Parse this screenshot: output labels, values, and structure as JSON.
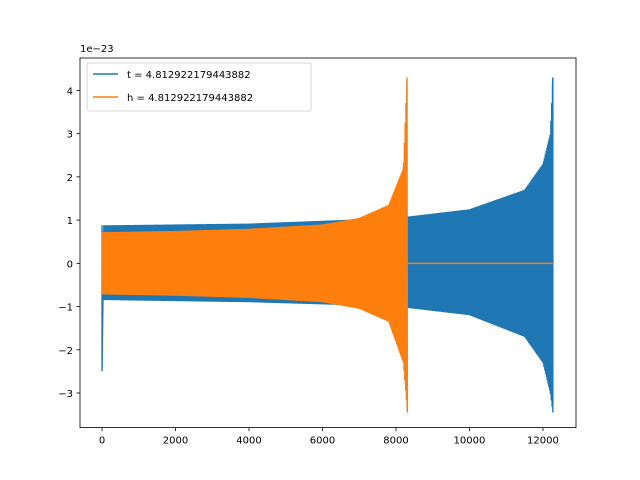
{
  "chart_data": {
    "type": "line",
    "title": "",
    "xlabel": "",
    "ylabel": "",
    "y_offset_label": "1e−23",
    "xlim": [
      -600,
      12900
    ],
    "ylim": [
      -3.8,
      4.75
    ],
    "x_ticks": [
      0,
      2000,
      4000,
      6000,
      8000,
      10000,
      12000
    ],
    "x_tick_labels": [
      "0",
      "2000",
      "4000",
      "6000",
      "8000",
      "10000",
      "12000"
    ],
    "y_ticks": [
      -3,
      -2,
      -1,
      0,
      1,
      2,
      3,
      4
    ],
    "y_tick_labels": [
      "−3",
      "−2",
      "−1",
      "0",
      "1",
      "2",
      "3",
      "4"
    ],
    "grid": false,
    "legend_position": "upper-left",
    "series": [
      {
        "name": "t = 4.812922179443882",
        "color": "#1f77b4",
        "x_start": 0,
        "x_end": 12300,
        "start_spike": [
          0.88,
          -2.5
        ],
        "upper_envelope": [
          [
            50,
            0.88
          ],
          [
            4000,
            0.92
          ],
          [
            8000,
            1.05
          ],
          [
            10000,
            1.25
          ],
          [
            11500,
            1.7
          ],
          [
            12000,
            2.3
          ],
          [
            12200,
            3.0
          ],
          [
            12270,
            4.3
          ]
        ],
        "lower_envelope": [
          [
            50,
            -0.85
          ],
          [
            4000,
            -0.9
          ],
          [
            8000,
            -1.0
          ],
          [
            10000,
            -1.2
          ],
          [
            11500,
            -1.7
          ],
          [
            12000,
            -2.3
          ],
          [
            12200,
            -3.0
          ],
          [
            12270,
            -3.45
          ]
        ],
        "tail_value": 0
      },
      {
        "name": "h = 4.812922179443882",
        "color": "#ff7f0e",
        "x_start": 0,
        "x_end": 12300,
        "upper_envelope": [
          [
            0,
            0.72
          ],
          [
            2000,
            0.75
          ],
          [
            4000,
            0.8
          ],
          [
            6000,
            0.9
          ],
          [
            7000,
            1.05
          ],
          [
            7800,
            1.35
          ],
          [
            8200,
            2.2
          ],
          [
            8300,
            4.3
          ]
        ],
        "lower_envelope": [
          [
            0,
            -0.72
          ],
          [
            2000,
            -0.75
          ],
          [
            4000,
            -0.8
          ],
          [
            6000,
            -0.9
          ],
          [
            7000,
            -1.05
          ],
          [
            7800,
            -1.35
          ],
          [
            8200,
            -2.3
          ],
          [
            8310,
            -3.45
          ]
        ],
        "tail_value": 0
      }
    ]
  }
}
